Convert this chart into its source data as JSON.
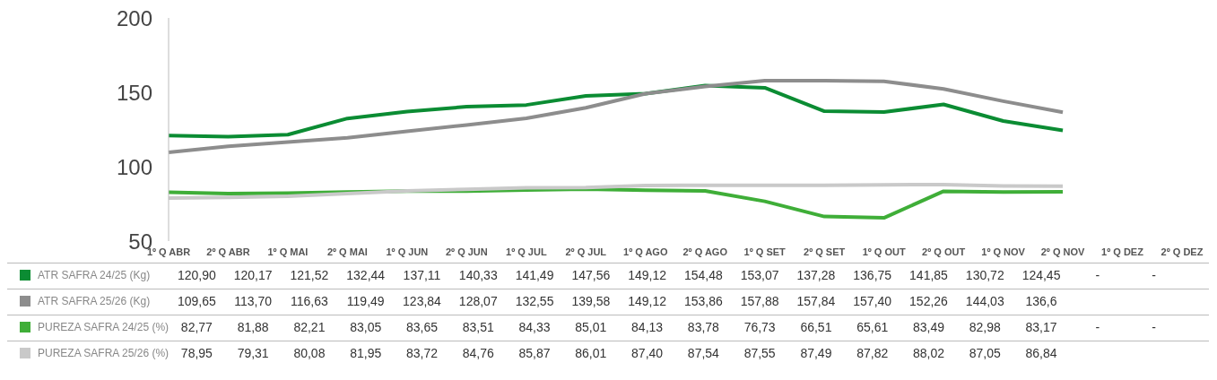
{
  "chart_data": {
    "type": "line",
    "categories": [
      "1º Q ABR",
      "2º Q ABR",
      "1º Q MAI",
      "2º Q MAI",
      "1º Q JUN",
      "2º Q JUN",
      "1º Q JUL",
      "2º Q JUL",
      "1º Q AGO",
      "2º Q AGO",
      "1º Q SET",
      "2º Q SET",
      "1º Q OUT",
      "2º Q OUT",
      "1º Q NOV",
      "2º Q NOV",
      "1º Q DEZ",
      "2º Q DEZ"
    ],
    "series": [
      {
        "name": "ATR SAFRA 24/25 (Kg)",
        "color": "#0b8c33",
        "values": [
          120.9,
          120.17,
          121.52,
          132.44,
          137.11,
          140.33,
          141.49,
          147.56,
          149.12,
          154.48,
          153.07,
          137.28,
          136.75,
          141.85,
          130.72,
          124.45,
          null,
          null
        ],
        "value_labels": [
          "120,90",
          "120,17",
          "121,52",
          "132,44",
          "137,11",
          "140,33",
          "141,49",
          "147,56",
          "149,12",
          "154,48",
          "153,07",
          "137,28",
          "136,75",
          "141,85",
          "130,72",
          "124,45",
          "-",
          "-"
        ]
      },
      {
        "name": "ATR SAFRA 25/26 (Kg)",
        "color": "#8d8d8d",
        "values": [
          109.65,
          113.7,
          116.63,
          119.49,
          123.84,
          128.07,
          132.55,
          139.58,
          149.12,
          153.86,
          157.88,
          157.84,
          157.4,
          152.26,
          144.03,
          136.6,
          null,
          null
        ],
        "value_labels": [
          "109,65",
          "113,70",
          "116,63",
          "119,49",
          "123,84",
          "128,07",
          "132,55",
          "139,58",
          "149,12",
          "153,86",
          "157,88",
          "157,84",
          "157,40",
          "152,26",
          "144,03",
          "136,6",
          null,
          null
        ]
      },
      {
        "name": "PUREZA SAFRA 24/25 (%)",
        "color": "#3fae38",
        "values": [
          82.77,
          81.88,
          82.21,
          83.05,
          83.65,
          83.51,
          84.33,
          85.01,
          84.13,
          83.78,
          76.73,
          66.51,
          65.61,
          83.49,
          82.98,
          83.17,
          null,
          null
        ],
        "value_labels": [
          "82,77",
          "81,88",
          "82,21",
          "83,05",
          "83,65",
          "83,51",
          "84,33",
          "85,01",
          "84,13",
          "83,78",
          "76,73",
          "66,51",
          "65,61",
          "83,49",
          "82,98",
          "83,17",
          "-",
          "-"
        ]
      },
      {
        "name": "PUREZA SAFRA 25/26 (%)",
        "color": "#c9c9c9",
        "values": [
          78.95,
          79.31,
          80.08,
          81.95,
          83.72,
          84.76,
          85.87,
          86.01,
          87.4,
          87.54,
          87.55,
          87.49,
          87.82,
          88.02,
          87.05,
          86.84,
          null,
          null
        ],
        "value_labels": [
          "78,95",
          "79,31",
          "80,08",
          "81,95",
          "83,72",
          "84,76",
          "85,87",
          "86,01",
          "87,40",
          "87,54",
          "87,55",
          "87,49",
          "87,82",
          "88,02",
          "87,05",
          "86,84",
          null,
          null
        ]
      }
    ],
    "ylim": [
      50,
      200
    ],
    "yticks": [
      50,
      100,
      150,
      200
    ],
    "legend": "bottom",
    "marker": "none",
    "line_style": "solid"
  }
}
